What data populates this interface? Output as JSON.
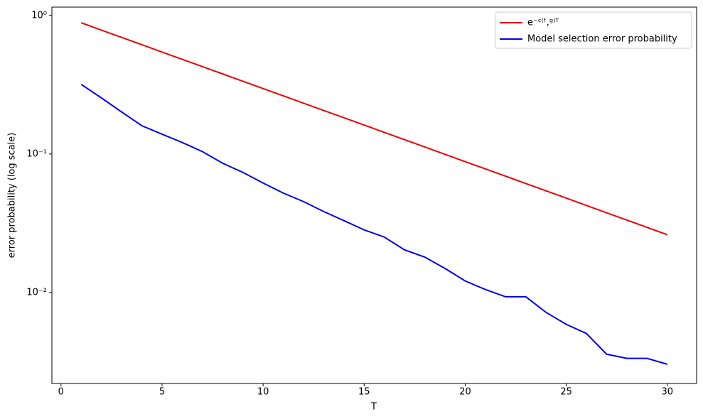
{
  "chart_data": {
    "type": "line",
    "xlabel": "T",
    "ylabel": "error probability (log scale)",
    "yscale": "log",
    "legend": "upper right",
    "grid": false,
    "x": [
      1,
      2,
      3,
      4,
      5,
      6,
      7,
      8,
      9,
      10,
      11,
      12,
      13,
      14,
      15,
      16,
      17,
      18,
      19,
      20,
      21,
      22,
      23,
      24,
      25,
      26,
      27,
      28,
      29,
      30
    ],
    "series": [
      {
        "name": "e⁻ᶜ⁽ᶠ,ᵍ⁾ᵀ",
        "color": "#ee0000",
        "values": [
          0.8856,
          0.7843,
          0.6946,
          0.6151,
          0.5448,
          0.4824,
          0.4273,
          0.3784,
          0.3351,
          0.2967,
          0.2628,
          0.2327,
          0.2061,
          0.1825,
          0.1617,
          0.1432,
          0.1268,
          0.1123,
          0.0994,
          0.088,
          0.078,
          0.0691,
          0.0612,
          0.0542,
          0.048,
          0.0425,
          0.0376,
          0.0333,
          0.0295,
          0.0261
        ]
      },
      {
        "name": "Model selection error probability",
        "color": "#0000ee",
        "values": [
          0.318,
          0.254,
          0.201,
          0.16,
          0.139,
          0.121,
          0.104,
          0.0857,
          0.0736,
          0.0617,
          0.0522,
          0.0453,
          0.0384,
          0.033,
          0.0283,
          0.0251,
          0.0203,
          0.018,
          0.0149,
          0.0121,
          0.0105,
          0.0093,
          0.0093,
          0.00718,
          0.00588,
          0.00505,
          0.00358,
          0.00334,
          0.00334,
          0.00303
        ]
      }
    ],
    "xlim": [
      -0.45,
      31.45
    ],
    "xticks": [
      0,
      5,
      10,
      15,
      20,
      25,
      30
    ],
    "ylim": [
      0.0022,
      1.15
    ],
    "yticks": [
      {
        "value": 1,
        "label": "10⁰"
      },
      {
        "value": 0.1,
        "label": "10⁻¹"
      },
      {
        "value": 0.01,
        "label": "10⁻²"
      }
    ]
  }
}
